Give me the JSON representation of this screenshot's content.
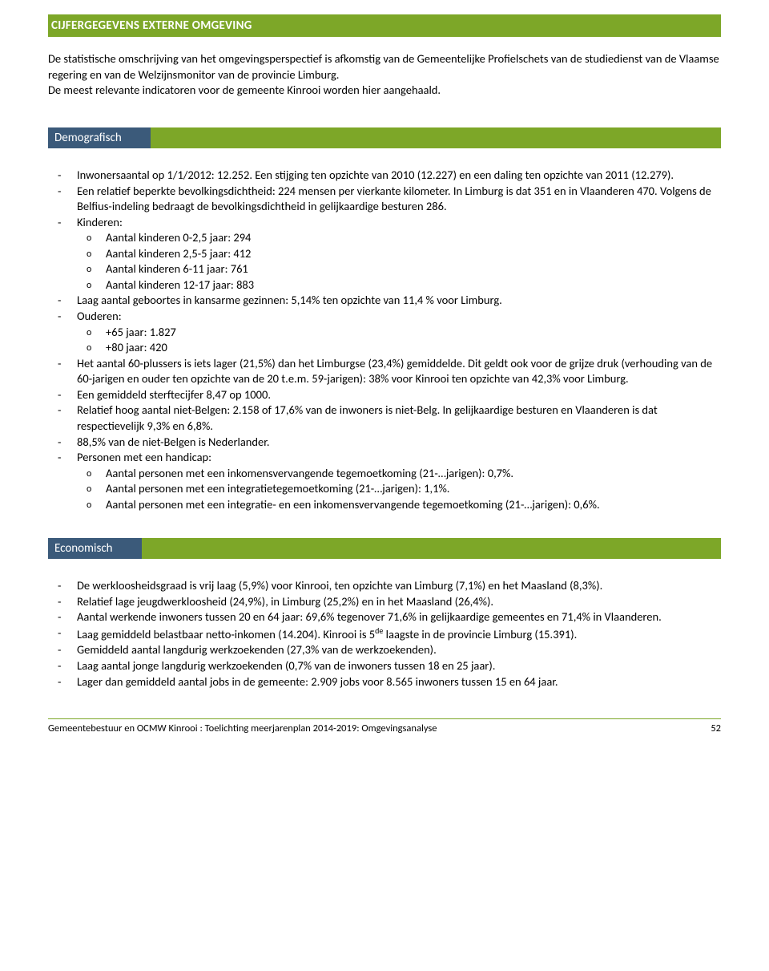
{
  "colors": {
    "olive": "#7da728",
    "blue": "#3b5a7a",
    "white": "#ffffff",
    "black": "#000000"
  },
  "header": {
    "title": "CIJFERGEGEVENS EXTERNE OMGEVING"
  },
  "intro": "De statistische omschrijving van het omgevingsperspectief is afkomstig van de Gemeentelijke Profielschets van de studiedienst van de Vlaamse regering en van de Welzijnsmonitor van de provincie Limburg.\nDe meest relevante indicatoren voor de gemeente Kinrooi worden hier aangehaald.",
  "sections": {
    "demografisch": {
      "label": "Demografisch",
      "items": [
        "Inwonersaantal op 1/1/2012: 12.252. Een stijging ten opzichte van 2010 (12.227) en een daling ten opzichte van 2011 (12.279).",
        "Een relatief beperkte bevolkingsdichtheid: 224 mensen per vierkante kilometer. In Limburg is dat 351 en in Vlaanderen 470. Volgens de Belfius-indeling bedraagt de bevolkingsdichtheid in gelijkaardige besturen 286.",
        "Kinderen:",
        "Laag aantal geboortes in kansarme gezinnen: 5,14% ten opzichte van 11,4 % voor Limburg.",
        "Ouderen:",
        "Het aantal 60-plussers is iets lager (21,5%) dan het Limburgse (23,4%) gemiddelde. Dit geldt ook voor de grijze druk (verhouding van de 60-jarigen en ouder ten opzichte van de 20 t.e.m. 59-jarigen): 38% voor Kinrooi ten opzichte van 42,3% voor Limburg.",
        "Een gemiddeld sterftecijfer 8,47 op 1000.",
        "Relatief hoog aantal niet-Belgen: 2.158 of 17,6% van de inwoners is niet-Belg. In gelijkaardige besturen en Vlaanderen is dat respectievelijk 9,3% en 6,8%.",
        "88,5% van de niet-Belgen is Nederlander.",
        "Personen met een handicap:"
      ],
      "kinderen_sub": [
        "Aantal kinderen 0-2,5 jaar: 294",
        "Aantal kinderen 2,5-5 jaar: 412",
        "Aantal kinderen 6-11 jaar: 761",
        "Aantal kinderen 12-17 jaar: 883"
      ],
      "ouderen_sub": [
        "+65 jaar: 1.827",
        "+80 jaar: 420"
      ],
      "handicap_sub": [
        "Aantal personen met een inkomensvervangende tegemoetkoming (21-…jarigen): 0,7%.",
        "Aantal personen met een integratietegemoetkoming (21-…jarigen): 1,1%.",
        "Aantal personen met een integratie- en een inkomensvervangende tegemoetkoming (21-…jarigen): 0,6%."
      ]
    },
    "economisch": {
      "label": "Economisch",
      "items": [
        "De werkloosheidsgraad is vrij laag (5,9%) voor Kinrooi, ten opzichte van Limburg (7,1%) en het Maasland (8,3%).",
        "Relatief lage jeugdwerkloosheid (24,9%), in Limburg (25,2%) en in het Maasland (26,4%).",
        "Aantal werkende inwoners tussen 20 en 64 jaar: 69,6% tegenover 71,6% in gelijkaardige gemeentes en 71,4% in Vlaanderen.",
        "Laag gemiddeld belastbaar netto-inkomen (14.204). Kinrooi is 5de laagste in de provincie Limburg (15.391).",
        "Gemiddeld aantal langdurig werkzoekenden (27,3% van de werkzoekenden).",
        "Laag aantal jonge langdurig werkzoekenden (0,7% van de inwoners tussen 18 en 25 jaar).",
        "Lager dan gemiddeld aantal jobs in de gemeente: 2.909 jobs voor 8.565 inwoners tussen 15 en 64 jaar."
      ]
    }
  },
  "footer": {
    "left": "Gemeentebestuur en OCMW Kinrooi : Toelichting meerjarenplan 2014-2019: Omgevingsanalyse",
    "page": "52"
  }
}
